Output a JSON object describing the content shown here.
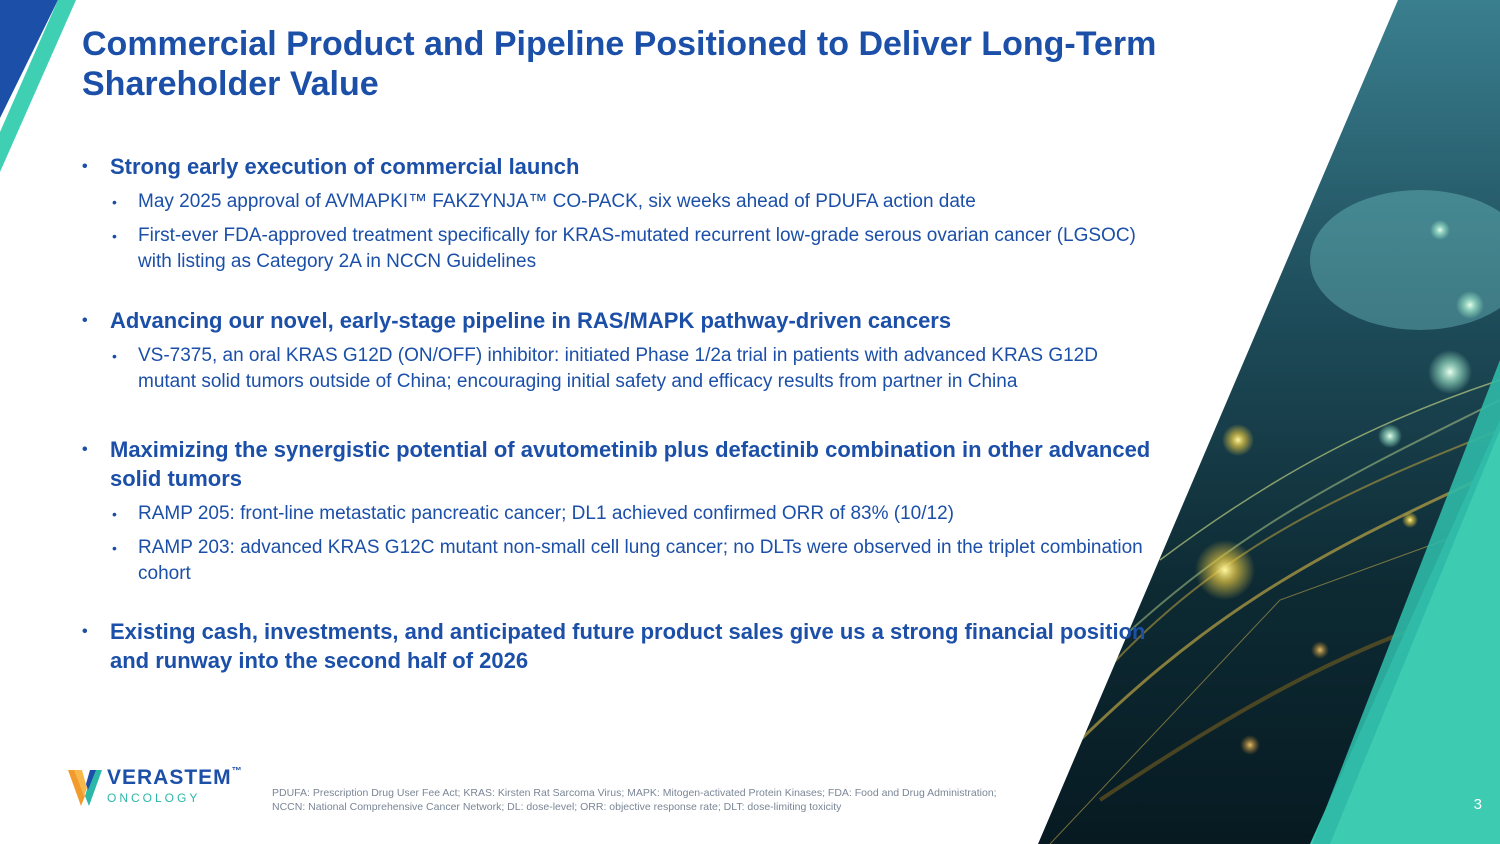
{
  "title": "Commercial Product and Pipeline Positioned to Deliver Long-Term Shareholder Value",
  "bullet_symbol": "•",
  "sections": [
    {
      "heading": "Strong early execution of commercial launch",
      "items": [
        "May 2025 approval of AVMAPKI™ FAKZYNJA™ CO-PACK, six weeks ahead of PDUFA action date",
        "First-ever FDA-approved treatment specifically for KRAS-mutated recurrent low-grade serous ovarian cancer (LGSOC) with listing as Category 2A in NCCN Guidelines"
      ]
    },
    {
      "heading": "Advancing our novel, early-stage pipeline in RAS/MAPK pathway-driven cancers",
      "items": [
        "VS-7375, an oral KRAS G12D (ON/OFF) inhibitor: initiated Phase 1/2a trial in patients with advanced KRAS G12D mutant solid tumors outside of China; encouraging initial safety and efficacy results from partner in China"
      ]
    },
    {
      "heading": "Maximizing the synergistic potential of avutometinib plus defactinib combination in other advanced solid tumors",
      "items": [
        "RAMP 205: front-line metastatic pancreatic cancer; DL1 achieved confirmed ORR of 83% (10/12)",
        "RAMP 203: advanced KRAS G12C mutant non-small cell lung cancer; no DLTs were observed in the triplet combination cohort"
      ]
    },
    {
      "heading": "Existing cash, investments, and anticipated future product sales give us a strong financial position and runway into the second half of 2026",
      "items": []
    }
  ],
  "logo": {
    "name": "VERASTEM",
    "trademark": "™",
    "sub": "ONCOLOGY"
  },
  "footnote": "PDUFA: Prescription Drug User Fee Act; KRAS: Kirsten Rat Sarcoma Virus; MAPK: Mitogen-activated Protein Kinases; FDA: Food and Drug Administration; NCCN: National Comprehensive Cancer Network; DL: dose-level; ORR: objective response rate; DLT: dose-limiting toxicity",
  "page_number": "3",
  "colors": {
    "title_blue": "#1b4fa8",
    "teal": "#2bc4b0",
    "logo_orange": "#f29a2e",
    "logo_teal": "#2bb8a8",
    "panel_dark": "#0b2a3a"
  }
}
